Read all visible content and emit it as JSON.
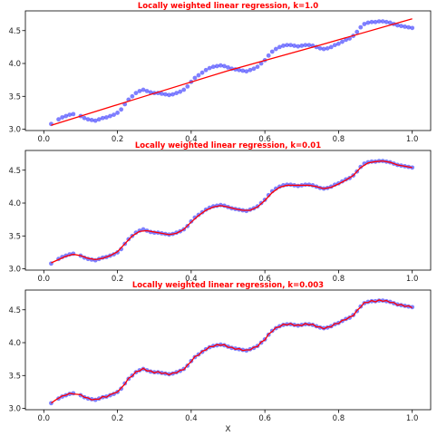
{
  "colors": {
    "points": "#0000ff",
    "fit_line": "#ff0000",
    "title": "#ff0000",
    "axes": "#000000"
  },
  "chart_data": [
    {
      "type": "scatter",
      "title": "Locally weighted linear regression, k=1.0",
      "xlabel": "",
      "ylabel": "",
      "xlim": [
        -0.05,
        1.05
      ],
      "ylim": [
        2.98,
        4.8
      ],
      "xticks": [
        "0.0",
        "0.2",
        "0.4",
        "0.6",
        "0.8",
        "1.0"
      ],
      "yticks": [
        "3.0",
        "3.5",
        "4.0",
        "4.5"
      ],
      "grid": false,
      "points": {
        "x": [
          0.02,
          0.04,
          0.05,
          0.06,
          0.07,
          0.08,
          0.1,
          0.11,
          0.12,
          0.13,
          0.14,
          0.15,
          0.16,
          0.17,
          0.18,
          0.19,
          0.2,
          0.21,
          0.22,
          0.23,
          0.24,
          0.25,
          0.26,
          0.27,
          0.28,
          0.29,
          0.3,
          0.31,
          0.32,
          0.33,
          0.34,
          0.35,
          0.36,
          0.37,
          0.38,
          0.39,
          0.4,
          0.41,
          0.42,
          0.43,
          0.44,
          0.45,
          0.46,
          0.47,
          0.48,
          0.49,
          0.5,
          0.51,
          0.52,
          0.53,
          0.54,
          0.55,
          0.56,
          0.57,
          0.58,
          0.59,
          0.6,
          0.61,
          0.62,
          0.63,
          0.64,
          0.65,
          0.66,
          0.67,
          0.68,
          0.69,
          0.7,
          0.71,
          0.72,
          0.73,
          0.74,
          0.75,
          0.76,
          0.77,
          0.78,
          0.79,
          0.8,
          0.81,
          0.82,
          0.83,
          0.84,
          0.85,
          0.86,
          0.87,
          0.88,
          0.89,
          0.9,
          0.91,
          0.92,
          0.93,
          0.94,
          0.95,
          0.96,
          0.97,
          0.98,
          0.99,
          1.0
        ],
        "y": [
          3.08,
          3.15,
          3.18,
          3.2,
          3.22,
          3.23,
          3.2,
          3.17,
          3.15,
          3.14,
          3.13,
          3.15,
          3.17,
          3.18,
          3.2,
          3.22,
          3.25,
          3.3,
          3.38,
          3.45,
          3.5,
          3.55,
          3.58,
          3.6,
          3.58,
          3.56,
          3.55,
          3.55,
          3.54,
          3.53,
          3.52,
          3.53,
          3.55,
          3.57,
          3.6,
          3.65,
          3.72,
          3.78,
          3.82,
          3.86,
          3.9,
          3.93,
          3.95,
          3.96,
          3.97,
          3.96,
          3.94,
          3.92,
          3.91,
          3.9,
          3.89,
          3.88,
          3.9,
          3.92,
          3.95,
          4.0,
          4.05,
          4.12,
          4.18,
          4.22,
          4.25,
          4.27,
          4.28,
          4.28,
          4.27,
          4.26,
          4.27,
          4.28,
          4.28,
          4.27,
          4.25,
          4.23,
          4.22,
          4.23,
          4.25,
          4.28,
          4.3,
          4.33,
          4.36,
          4.38,
          4.42,
          4.48,
          4.55,
          4.6,
          4.62,
          4.63,
          4.63,
          4.64,
          4.64,
          4.63,
          4.62,
          4.6,
          4.58,
          4.57,
          4.56,
          4.55,
          4.54
        ]
      },
      "fit": {
        "x": [
          0.02,
          0.25,
          0.5,
          0.75,
          1.0
        ],
        "y": [
          3.06,
          3.46,
          3.89,
          4.28,
          4.68
        ]
      }
    },
    {
      "type": "scatter",
      "title": "Locally weighted linear regression, k=0.01",
      "xlabel": "",
      "ylabel": "",
      "xlim": [
        -0.05,
        1.05
      ],
      "ylim": [
        2.98,
        4.8
      ],
      "xticks": [
        "0.0",
        "0.2",
        "0.4",
        "0.6",
        "0.8",
        "1.0"
      ],
      "yticks": [
        "3.0",
        "3.5",
        "4.0",
        "4.5"
      ],
      "grid": false,
      "points": {
        "x": [
          0.02,
          0.04,
          0.05,
          0.06,
          0.07,
          0.08,
          0.1,
          0.11,
          0.12,
          0.13,
          0.14,
          0.15,
          0.16,
          0.17,
          0.18,
          0.19,
          0.2,
          0.21,
          0.22,
          0.23,
          0.24,
          0.25,
          0.26,
          0.27,
          0.28,
          0.29,
          0.3,
          0.31,
          0.32,
          0.33,
          0.34,
          0.35,
          0.36,
          0.37,
          0.38,
          0.39,
          0.4,
          0.41,
          0.42,
          0.43,
          0.44,
          0.45,
          0.46,
          0.47,
          0.48,
          0.49,
          0.5,
          0.51,
          0.52,
          0.53,
          0.54,
          0.55,
          0.56,
          0.57,
          0.58,
          0.59,
          0.6,
          0.61,
          0.62,
          0.63,
          0.64,
          0.65,
          0.66,
          0.67,
          0.68,
          0.69,
          0.7,
          0.71,
          0.72,
          0.73,
          0.74,
          0.75,
          0.76,
          0.77,
          0.78,
          0.79,
          0.8,
          0.81,
          0.82,
          0.83,
          0.84,
          0.85,
          0.86,
          0.87,
          0.88,
          0.89,
          0.9,
          0.91,
          0.92,
          0.93,
          0.94,
          0.95,
          0.96,
          0.97,
          0.98,
          0.99,
          1.0
        ],
        "y": [
          3.08,
          3.15,
          3.18,
          3.2,
          3.22,
          3.23,
          3.2,
          3.17,
          3.15,
          3.14,
          3.13,
          3.15,
          3.17,
          3.18,
          3.2,
          3.22,
          3.25,
          3.3,
          3.38,
          3.45,
          3.5,
          3.55,
          3.58,
          3.6,
          3.58,
          3.56,
          3.55,
          3.55,
          3.54,
          3.53,
          3.52,
          3.53,
          3.55,
          3.57,
          3.6,
          3.65,
          3.72,
          3.78,
          3.82,
          3.86,
          3.9,
          3.93,
          3.95,
          3.96,
          3.97,
          3.96,
          3.94,
          3.92,
          3.91,
          3.9,
          3.89,
          3.88,
          3.9,
          3.92,
          3.95,
          4.0,
          4.05,
          4.12,
          4.18,
          4.22,
          4.25,
          4.27,
          4.28,
          4.28,
          4.27,
          4.26,
          4.27,
          4.28,
          4.28,
          4.27,
          4.25,
          4.23,
          4.22,
          4.23,
          4.25,
          4.28,
          4.3,
          4.33,
          4.36,
          4.38,
          4.42,
          4.48,
          4.55,
          4.6,
          4.62,
          4.63,
          4.63,
          4.64,
          4.64,
          4.63,
          4.62,
          4.6,
          4.58,
          4.57,
          4.56,
          4.55,
          4.54
        ]
      },
      "fit": {
        "x": [
          0.02,
          0.04,
          0.06,
          0.08,
          0.1,
          0.12,
          0.14,
          0.16,
          0.18,
          0.2,
          0.22,
          0.24,
          0.26,
          0.28,
          0.3,
          0.32,
          0.34,
          0.36,
          0.38,
          0.4,
          0.42,
          0.44,
          0.46,
          0.48,
          0.5,
          0.52,
          0.54,
          0.56,
          0.58,
          0.6,
          0.62,
          0.64,
          0.66,
          0.68,
          0.7,
          0.72,
          0.74,
          0.76,
          0.78,
          0.8,
          0.82,
          0.84,
          0.86,
          0.88,
          0.9,
          0.92,
          0.94,
          0.96,
          0.98,
          1.0
        ],
        "y": [
          3.09,
          3.14,
          3.19,
          3.22,
          3.2,
          3.16,
          3.14,
          3.16,
          3.2,
          3.26,
          3.38,
          3.5,
          3.57,
          3.58,
          3.56,
          3.54,
          3.52,
          3.54,
          3.6,
          3.71,
          3.81,
          3.89,
          3.94,
          3.96,
          3.94,
          3.91,
          3.89,
          3.89,
          3.94,
          4.04,
          4.16,
          4.24,
          4.27,
          4.27,
          4.27,
          4.27,
          4.25,
          4.22,
          4.24,
          4.29,
          4.35,
          4.42,
          4.54,
          4.61,
          4.63,
          4.64,
          4.62,
          4.58,
          4.56,
          4.54
        ]
      }
    },
    {
      "type": "scatter",
      "title": "Locally weighted linear regression, k=0.003",
      "xlabel": "X",
      "ylabel": "",
      "xlim": [
        -0.05,
        1.05
      ],
      "ylim": [
        2.98,
        4.8
      ],
      "xticks": [
        "0.0",
        "0.2",
        "0.4",
        "0.6",
        "0.8",
        "1.0"
      ],
      "yticks": [
        "3.0",
        "3.5",
        "4.0",
        "4.5"
      ],
      "grid": false,
      "points": {
        "x": [
          0.02,
          0.04,
          0.05,
          0.06,
          0.07,
          0.08,
          0.1,
          0.11,
          0.12,
          0.13,
          0.14,
          0.15,
          0.16,
          0.17,
          0.18,
          0.19,
          0.2,
          0.21,
          0.22,
          0.23,
          0.24,
          0.25,
          0.26,
          0.27,
          0.28,
          0.29,
          0.3,
          0.31,
          0.32,
          0.33,
          0.34,
          0.35,
          0.36,
          0.37,
          0.38,
          0.39,
          0.4,
          0.41,
          0.42,
          0.43,
          0.44,
          0.45,
          0.46,
          0.47,
          0.48,
          0.49,
          0.5,
          0.51,
          0.52,
          0.53,
          0.54,
          0.55,
          0.56,
          0.57,
          0.58,
          0.59,
          0.6,
          0.61,
          0.62,
          0.63,
          0.64,
          0.65,
          0.66,
          0.67,
          0.68,
          0.69,
          0.7,
          0.71,
          0.72,
          0.73,
          0.74,
          0.75,
          0.76,
          0.77,
          0.78,
          0.79,
          0.8,
          0.81,
          0.82,
          0.83,
          0.84,
          0.85,
          0.86,
          0.87,
          0.88,
          0.89,
          0.9,
          0.91,
          0.92,
          0.93,
          0.94,
          0.95,
          0.96,
          0.97,
          0.98,
          0.99,
          1.0
        ],
        "y": [
          3.08,
          3.15,
          3.18,
          3.2,
          3.22,
          3.23,
          3.2,
          3.17,
          3.15,
          3.14,
          3.13,
          3.15,
          3.17,
          3.18,
          3.2,
          3.22,
          3.25,
          3.3,
          3.38,
          3.45,
          3.5,
          3.55,
          3.58,
          3.6,
          3.58,
          3.56,
          3.55,
          3.55,
          3.54,
          3.53,
          3.52,
          3.53,
          3.55,
          3.57,
          3.6,
          3.65,
          3.72,
          3.78,
          3.82,
          3.86,
          3.9,
          3.93,
          3.95,
          3.96,
          3.97,
          3.96,
          3.94,
          3.92,
          3.91,
          3.9,
          3.89,
          3.88,
          3.9,
          3.92,
          3.95,
          4.0,
          4.05,
          4.12,
          4.18,
          4.22,
          4.25,
          4.27,
          4.28,
          4.28,
          4.27,
          4.26,
          4.27,
          4.28,
          4.28,
          4.27,
          4.25,
          4.23,
          4.22,
          4.23,
          4.25,
          4.28,
          4.3,
          4.33,
          4.36,
          4.38,
          4.42,
          4.48,
          4.55,
          4.6,
          4.62,
          4.63,
          4.63,
          4.64,
          4.64,
          4.63,
          4.62,
          4.6,
          4.58,
          4.57,
          4.56,
          4.55,
          4.54
        ]
      },
      "fit": {
        "x": [
          0.02,
          0.03,
          0.05,
          0.06,
          0.07,
          0.08,
          0.1,
          0.11,
          0.12,
          0.13,
          0.14,
          0.15,
          0.16,
          0.17,
          0.18,
          0.2,
          0.21,
          0.22,
          0.23,
          0.24,
          0.25,
          0.26,
          0.27,
          0.28,
          0.29,
          0.3,
          0.31,
          0.32,
          0.33,
          0.34,
          0.35,
          0.36,
          0.37,
          0.38,
          0.39,
          0.4,
          0.41,
          0.42,
          0.43,
          0.44,
          0.45,
          0.46,
          0.47,
          0.48,
          0.49,
          0.5,
          0.51,
          0.52,
          0.53,
          0.54,
          0.55,
          0.56,
          0.57,
          0.58,
          0.59,
          0.6,
          0.61,
          0.62,
          0.63,
          0.64,
          0.65,
          0.66,
          0.67,
          0.68,
          0.69,
          0.7,
          0.71,
          0.72,
          0.73,
          0.74,
          0.75,
          0.76,
          0.77,
          0.78,
          0.79,
          0.8,
          0.81,
          0.82,
          0.83,
          0.84,
          0.85,
          0.86,
          0.87,
          0.88,
          0.89,
          0.9,
          0.91,
          0.92,
          0.93,
          0.94,
          0.95,
          0.96,
          0.97,
          0.98,
          0.99,
          1.0
        ],
        "y": [
          3.08,
          3.12,
          3.19,
          3.2,
          3.23,
          3.22,
          3.21,
          3.17,
          3.16,
          3.13,
          3.14,
          3.14,
          3.18,
          3.17,
          3.21,
          3.25,
          3.31,
          3.37,
          3.46,
          3.49,
          3.56,
          3.57,
          3.61,
          3.57,
          3.57,
          3.54,
          3.56,
          3.53,
          3.54,
          3.51,
          3.54,
          3.54,
          3.58,
          3.59,
          3.66,
          3.71,
          3.79,
          3.81,
          3.87,
          3.89,
          3.94,
          3.94,
          3.97,
          3.96,
          3.97,
          3.93,
          3.93,
          3.9,
          3.91,
          3.88,
          3.89,
          3.89,
          3.93,
          3.94,
          4.01,
          4.04,
          4.13,
          4.17,
          4.23,
          4.24,
          4.28,
          4.27,
          4.29,
          4.26,
          4.27,
          4.26,
          4.29,
          4.27,
          4.28,
          4.24,
          4.24,
          4.21,
          4.24,
          4.24,
          4.29,
          4.29,
          4.34,
          4.35,
          4.39,
          4.41,
          4.49,
          4.54,
          4.61,
          4.61,
          4.64,
          4.62,
          4.65,
          4.63,
          4.64,
          4.61,
          4.61,
          4.57,
          4.58,
          4.55,
          4.56,
          4.53
        ]
      }
    }
  ]
}
